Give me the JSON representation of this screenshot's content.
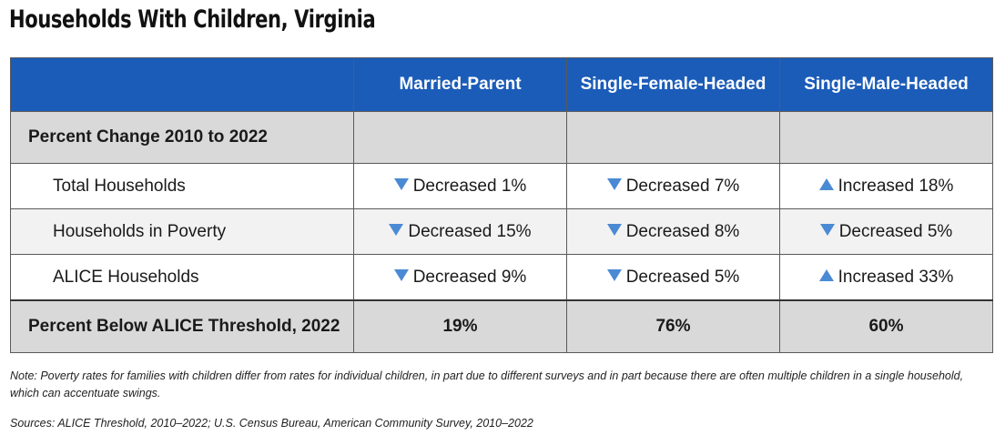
{
  "title": "Households With Children, Virginia",
  "columns": [
    "Married-Parent",
    "Single-Female-Headed",
    "Single-Male-Headed"
  ],
  "section_label": "Percent Change 2010 to 2022",
  "rows": [
    {
      "label": "Total Households",
      "cells": [
        {
          "direction": "down",
          "text": "Decreased 1%"
        },
        {
          "direction": "down",
          "text": "Decreased 7%"
        },
        {
          "direction": "up",
          "text": "Increased 18%"
        }
      ]
    },
    {
      "label": "Households in Poverty",
      "cells": [
        {
          "direction": "down",
          "text": "Decreased 15%"
        },
        {
          "direction": "down",
          "text": "Decreased 8%"
        },
        {
          "direction": "down",
          "text": "Decreased 5%"
        }
      ]
    },
    {
      "label": "ALICE Households",
      "cells": [
        {
          "direction": "down",
          "text": "Decreased 9%"
        },
        {
          "direction": "down",
          "text": "Decreased 5%"
        },
        {
          "direction": "up",
          "text": "Increased 33%"
        }
      ]
    }
  ],
  "total_row": {
    "label": "Percent Below ALICE Threshold, 2022",
    "values": [
      "19%",
      "76%",
      "60%"
    ]
  },
  "note": "Note: Poverty rates for families with children differ from rates for individual children, in part due to different surveys and in part because there are often multiple children in a single household, which can accentuate swings.",
  "sources": "Sources: ALICE Threshold, 2010–2022; U.S. Census Bureau, American Community Survey, 2010–2022",
  "colors": {
    "header_blue": "#1b5cb8",
    "arrow_blue": "#4a8ad4",
    "gray_band": "#d9d9d9"
  }
}
